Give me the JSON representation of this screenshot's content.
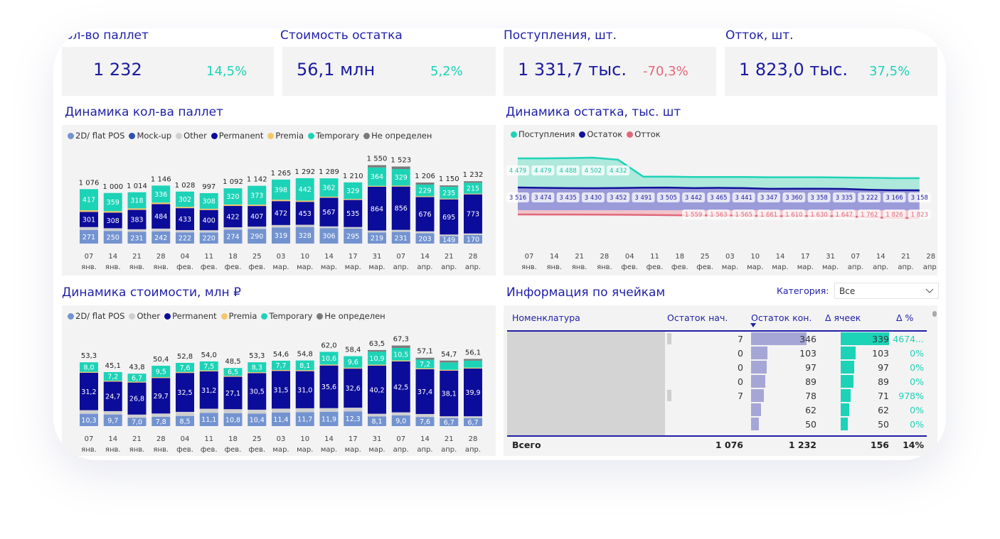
{
  "kpis": [
    {
      "title": "Кол-во паллет",
      "value": "1 232",
      "change": "14,5%",
      "change_color": "#1dd3b7"
    },
    {
      "title": "Стоимость остатка",
      "value": "56,1 млн",
      "change": "5,2%",
      "change_color": "#1dd3b7"
    },
    {
      "title": "Поступления, шт.",
      "value": "1 331,7 тыс.",
      "change": "-70,3%",
      "change_color": "#e0687a"
    },
    {
      "title": "Отток, шт.",
      "value": "1 823,0 тыс.",
      "change": "37,5%",
      "change_color": "#1dd3b7"
    }
  ],
  "colors": {
    "2d": "#7393d0",
    "mockup": "#2f4fae",
    "other": "#cfcfcf",
    "permanent": "#0c0c9a",
    "premia": "#f5c76a",
    "temporary": "#1dd3b7",
    "undefined": "#7a7a7a",
    "inflow": "#1dd3b7",
    "stock": "#12129a",
    "outflow": "#e0687a"
  },
  "chart_data": [
    {
      "type": "bar",
      "stacked": true,
      "title": "Динамика кол-ва паллет",
      "ylim": [
        0,
        1600
      ],
      "legend": [
        {
          "key": "2d",
          "label": "2D/ flat POS"
        },
        {
          "key": "mockup",
          "label": "Mock-up"
        },
        {
          "key": "other",
          "label": "Other"
        },
        {
          "key": "permanent",
          "label": "Permanent"
        },
        {
          "key": "premia",
          "label": "Premia"
        },
        {
          "key": "temporary",
          "label": "Temporary"
        },
        {
          "key": "undefined",
          "label": "Не определен"
        }
      ],
      "categories": [
        [
          "07",
          "янв."
        ],
        [
          "14",
          "янв."
        ],
        [
          "21",
          "янв."
        ],
        [
          "28",
          "янв."
        ],
        [
          "04",
          "фев."
        ],
        [
          "11",
          "фев."
        ],
        [
          "18",
          "фев."
        ],
        [
          "25",
          "фев."
        ],
        [
          "03",
          "мар."
        ],
        [
          "10",
          "мар."
        ],
        [
          "14",
          "мар."
        ],
        [
          "17",
          "мар."
        ],
        [
          "31",
          "мар."
        ],
        [
          "07",
          "апр."
        ],
        [
          "14",
          "апр."
        ],
        [
          "21",
          "апр."
        ],
        [
          "28",
          "апр."
        ]
      ],
      "totals": [
        "1 076",
        "1 000",
        "1 014",
        "1 146",
        "1 028",
        "997",
        "1 092",
        "1 142",
        "1 265",
        "1 292",
        "1 289",
        "1 210",
        "1 550",
        "1 523",
        "1 206",
        "1 150",
        "1 232"
      ],
      "series": [
        {
          "key": "2d",
          "labeled": true,
          "values": [
            271,
            250,
            231,
            242,
            222,
            220,
            274,
            290,
            319,
            328,
            306,
            295,
            219,
            231,
            203,
            149,
            170
          ]
        },
        {
          "key": "other",
          "labeled": false,
          "values": [
            55,
            53,
            52,
            54,
            45,
            44,
            48,
            46,
            48,
            44,
            34,
            32,
            40,
            40,
            40,
            30,
            30
          ]
        },
        {
          "key": "permanent",
          "labeled": true,
          "values": [
            301,
            308,
            383,
            484,
            433,
            400,
            422,
            407,
            472,
            453,
            567,
            535,
            864,
            856,
            676,
            695,
            773
          ]
        },
        {
          "key": "premia",
          "labeled": false,
          "values": [
            32,
            30,
            30,
            30,
            26,
            25,
            28,
            26,
            28,
            25,
            20,
            19,
            18,
            18,
            18,
            15,
            15
          ]
        },
        {
          "key": "temporary",
          "labeled": true,
          "values": [
            417,
            359,
            318,
            336,
            302,
            308,
            320,
            373,
            398,
            442,
            362,
            329,
            364,
            329,
            229,
            235,
            215
          ]
        },
        {
          "key": "undefined",
          "labeled": false,
          "values": [
            0,
            0,
            0,
            0,
            0,
            0,
            0,
            0,
            0,
            0,
            0,
            0,
            45,
            49,
            40,
            26,
            29
          ]
        }
      ]
    },
    {
      "type": "bar",
      "stacked": true,
      "title": "Динамика стоимости, млн ₽",
      "ylim": [
        0,
        70
      ],
      "legend": [
        {
          "key": "2d",
          "label": "2D/ flat POS"
        },
        {
          "key": "other",
          "label": "Other"
        },
        {
          "key": "permanent",
          "label": "Permanent"
        },
        {
          "key": "premia",
          "label": "Premia"
        },
        {
          "key": "temporary",
          "label": "Temporary"
        },
        {
          "key": "undefined",
          "label": "Не определен"
        }
      ],
      "categories": [
        [
          "07",
          "янв."
        ],
        [
          "14",
          "янв."
        ],
        [
          "21",
          "янв."
        ],
        [
          "28",
          "янв."
        ],
        [
          "04",
          "фев."
        ],
        [
          "11",
          "фев."
        ],
        [
          "18",
          "фев."
        ],
        [
          "25",
          "фев."
        ],
        [
          "03",
          "мар."
        ],
        [
          "10",
          "мар."
        ],
        [
          "14",
          "мар."
        ],
        [
          "17",
          "мар."
        ],
        [
          "31",
          "мар."
        ],
        [
          "07",
          "апр."
        ],
        [
          "14",
          "апр."
        ],
        [
          "21",
          "апр."
        ],
        [
          "28",
          "апр."
        ]
      ],
      "totals": [
        "53,3",
        "45,1",
        "43,8",
        "50,4",
        "52,8",
        "54,0",
        "48,5",
        "53,3",
        "54,6",
        "54,8",
        "62,0",
        "58,4",
        "63,5",
        "67,3",
        "57,1",
        "54,7",
        "56,1"
      ],
      "series": [
        {
          "key": "2d",
          "labeled": true,
          "values": [
            10.3,
            9.7,
            7.0,
            7.8,
            8.5,
            11.1,
            10.8,
            10.4,
            11.4,
            11.7,
            11.9,
            12.3,
            8.1,
            9.0,
            7.6,
            6.7,
            6.7
          ]
        },
        {
          "key": "other",
          "labeled": false,
          "values": [
            3.0,
            2.8,
            2.6,
            2.7,
            3.4,
            3.4,
            3.3,
            3.3,
            3.2,
            3.2,
            3.1,
            3.1,
            2.2,
            2.5,
            2.5,
            1.5,
            1.5
          ]
        },
        {
          "key": "permanent",
          "labeled": true,
          "values": [
            31.2,
            24.7,
            26.8,
            29.7,
            32.5,
            31.2,
            27.1,
            30.5,
            31.5,
            31.0,
            35.6,
            32.6,
            40.2,
            42.5,
            37.4,
            38.1,
            39.9
          ]
        },
        {
          "key": "premia",
          "labeled": false,
          "values": [
            0.8,
            0.7,
            0.7,
            0.7,
            0.8,
            0.8,
            0.8,
            0.8,
            0.8,
            0.8,
            0.8,
            0.8,
            0.8,
            0.8,
            0.8,
            0.7,
            0.7
          ]
        },
        {
          "key": "temporary",
          "labeled": true,
          "values": [
            8.0,
            7.2,
            6.7,
            9.5,
            7.6,
            7.5,
            6.5,
            8.3,
            7.7,
            8.1,
            10.6,
            9.6,
            10.9,
            10.5,
            7.2,
            6.2,
            5.9
          ],
          "hide_label": [
            15,
            16
          ]
        },
        {
          "key": "undefined",
          "labeled": false,
          "values": [
            0,
            0,
            0,
            0,
            0,
            0,
            0,
            0,
            0,
            0,
            0,
            0,
            1.3,
            2.0,
            1.6,
            1.5,
            1.4
          ]
        }
      ]
    },
    {
      "type": "area",
      "title": "Динамика остатка, тыс. шт",
      "legend": [
        {
          "key": "inflow",
          "label": "Поступления"
        },
        {
          "key": "stock",
          "label": "Остаток"
        },
        {
          "key": "outflow",
          "label": "Отток"
        }
      ],
      "categories": [
        [
          "07",
          "янв."
        ],
        [
          "14",
          "янв."
        ],
        [
          "21",
          "янв."
        ],
        [
          "28",
          "янв."
        ],
        [
          "04",
          "фев."
        ],
        [
          "11",
          "фев."
        ],
        [
          "18",
          "фев."
        ],
        [
          "25",
          "фев."
        ],
        [
          "03",
          "мар."
        ],
        [
          "10",
          "мар."
        ],
        [
          "14",
          "мар."
        ],
        [
          "17",
          "мар."
        ],
        [
          "31",
          "мар."
        ],
        [
          "07",
          "апр."
        ],
        [
          "14",
          "апр."
        ],
        [
          "21",
          "апр."
        ],
        [
          "28",
          "апр."
        ]
      ],
      "series": [
        {
          "key": "inflow",
          "values": [
            4479,
            4479,
            4488,
            4502,
            4432,
            3850,
            3850,
            3840,
            3840,
            3840,
            3830,
            3830,
            3830,
            3820,
            3810,
            3800,
            3800
          ],
          "labels": [
            "4 479",
            "4 479",
            "4 488",
            "4 502",
            "4 432",
            null,
            null,
            null,
            null,
            null,
            null,
            null,
            null,
            null,
            null,
            null,
            null
          ]
        },
        {
          "key": "stock",
          "values": [
            3516,
            3474,
            3435,
            3430,
            3452,
            3491,
            3505,
            3442,
            3465,
            3441,
            3347,
            3360,
            3358,
            3335,
            3222,
            3166,
            3158
          ],
          "labels": [
            "3 516",
            "3 474",
            "3 435",
            "3 430",
            "3 452",
            "3 491",
            "3 505",
            "3 442",
            "3 465",
            "3 441",
            "3 347",
            "3 360",
            "3 358",
            "3 335",
            "3 222",
            "3 166",
            "3 158"
          ]
        },
        {
          "key": "outflow",
          "values": [
            1450,
            1455,
            1460,
            1470,
            1480,
            1500,
            1530,
            1559,
            1563,
            1565,
            1661,
            1610,
            1630,
            1647,
            1762,
            1826,
            1823
          ],
          "labels": [
            null,
            null,
            null,
            null,
            null,
            null,
            null,
            "1 559",
            "1 563",
            "1 565",
            "1 661",
            "1 610",
            "1 630",
            "1 647",
            "1 762",
            "1 826",
            "1 823"
          ]
        }
      ]
    }
  ],
  "table": {
    "title": "Информация по ячейкам",
    "filter_label": "Категория:",
    "filter_value": "Все",
    "headers": [
      "Номенклатура",
      "Остаток нач.",
      "Остаток кон.",
      "Δ ячеек",
      "Δ %"
    ],
    "rows": [
      {
        "start": "7",
        "end": "346",
        "delta": "339",
        "pct": "4674...",
        "start_v": 7,
        "end_v": 346,
        "delta_v": 339
      },
      {
        "start": "0",
        "end": "103",
        "delta": "103",
        "pct": "0%",
        "start_v": 0,
        "end_v": 103,
        "delta_v": 103
      },
      {
        "start": "0",
        "end": "97",
        "delta": "97",
        "pct": "0%",
        "start_v": 0,
        "end_v": 97,
        "delta_v": 97
      },
      {
        "start": "0",
        "end": "89",
        "delta": "89",
        "pct": "0%",
        "start_v": 0,
        "end_v": 89,
        "delta_v": 89
      },
      {
        "start": "7",
        "end": "78",
        "delta": "71",
        "pct": "978%",
        "start_v": 7,
        "end_v": 78,
        "delta_v": 71
      },
      {
        "start": "",
        "end": "62",
        "delta": "62",
        "pct": "0%",
        "start_v": 0,
        "end_v": 62,
        "delta_v": 62
      },
      {
        "start": "",
        "end": "50",
        "delta": "50",
        "pct": "0%",
        "start_v": 0,
        "end_v": 50,
        "delta_v": 50
      }
    ],
    "total": {
      "label": "Всего",
      "start": "1 076",
      "end": "1 232",
      "delta": "156",
      "pct": "14%"
    }
  }
}
